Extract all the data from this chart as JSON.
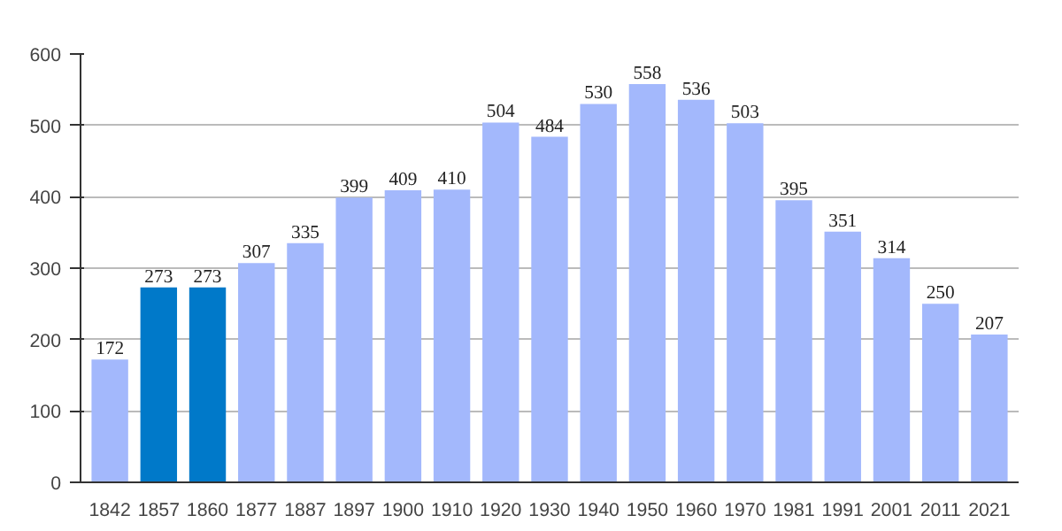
{
  "chart_data": {
    "type": "bar",
    "categories": [
      "1842",
      "1857",
      "1860",
      "1877",
      "1887",
      "1897",
      "1900",
      "1910",
      "1920",
      "1930",
      "1940",
      "1950",
      "1960",
      "1970",
      "1981",
      "1991",
      "2001",
      "2011",
      "2021"
    ],
    "values": [
      172,
      273,
      273,
      307,
      335,
      399,
      409,
      410,
      504,
      484,
      530,
      558,
      536,
      503,
      395,
      351,
      314,
      250,
      207
    ],
    "colors": [
      "#a3b8fc",
      "#0079c9",
      "#0079c9",
      "#a3b8fc",
      "#a3b8fc",
      "#a3b8fc",
      "#a3b8fc",
      "#a3b8fc",
      "#a3b8fc",
      "#a3b8fc",
      "#a3b8fc",
      "#a3b8fc",
      "#a3b8fc",
      "#a3b8fc",
      "#a3b8fc",
      "#a3b8fc",
      "#a3b8fc",
      "#a3b8fc",
      "#a3b8fc"
    ],
    "ylim": [
      0,
      600
    ],
    "yticks": [
      0,
      100,
      200,
      300,
      400,
      500,
      600
    ],
    "grid": "y",
    "data_labels": true
  }
}
